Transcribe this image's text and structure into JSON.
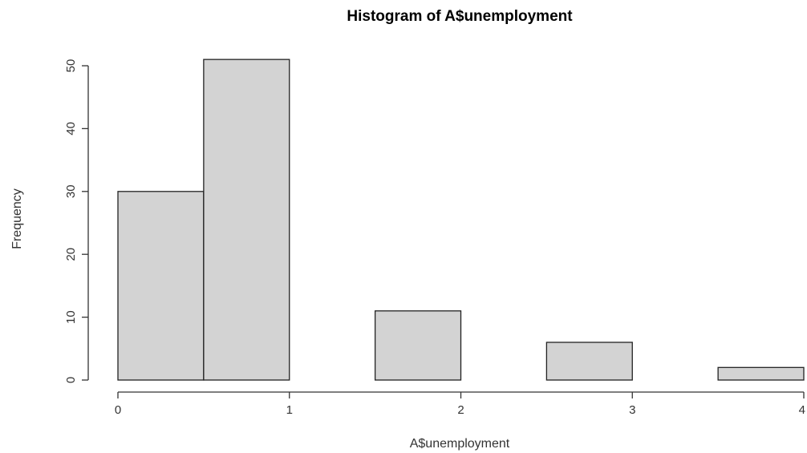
{
  "chart_data": {
    "type": "bar",
    "title": "Histogram of A$unemployment",
    "xlabel": "A$unemployment",
    "ylabel": "Frequency",
    "bins": [
      {
        "start": 0.0,
        "end": 0.5,
        "count": 30
      },
      {
        "start": 0.5,
        "end": 1.0,
        "count": 51
      },
      {
        "start": 1.0,
        "end": 1.5,
        "count": 0
      },
      {
        "start": 1.5,
        "end": 2.0,
        "count": 11
      },
      {
        "start": 2.0,
        "end": 2.5,
        "count": 0
      },
      {
        "start": 2.5,
        "end": 3.0,
        "count": 6
      },
      {
        "start": 3.0,
        "end": 3.5,
        "count": 0
      },
      {
        "start": 3.5,
        "end": 4.0,
        "count": 2
      }
    ],
    "xlim": [
      0,
      4
    ],
    "ylim": [
      0,
      51
    ],
    "xticks": [
      0,
      1,
      2,
      3,
      4
    ],
    "yticks": [
      0,
      10,
      20,
      30,
      40,
      50
    ],
    "grid": false,
    "bar_color": "#d3d3d3",
    "edge_color": "#222222"
  }
}
